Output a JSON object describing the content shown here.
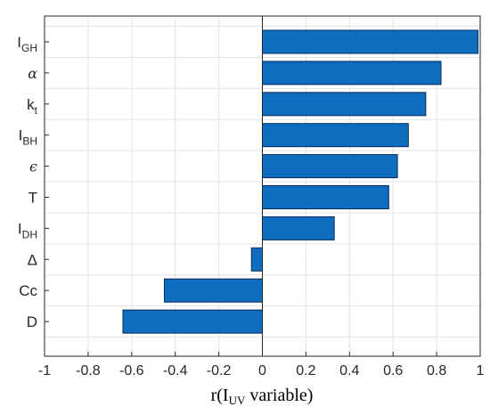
{
  "chart_data": {
    "type": "bar",
    "orientation": "horizontal",
    "categories": [
      {
        "main": "I",
        "sub": "GH",
        "style": "normal"
      },
      {
        "main": "α",
        "sub": "",
        "style": "italic"
      },
      {
        "main": "k",
        "sub": "t",
        "style": "normal"
      },
      {
        "main": "I",
        "sub": "BH",
        "style": "normal"
      },
      {
        "main": "ϵ",
        "sub": "",
        "style": "italic"
      },
      {
        "main": "T",
        "sub": "",
        "style": "normal"
      },
      {
        "main": "I",
        "sub": "DH",
        "style": "normal"
      },
      {
        "main": "Δ",
        "sub": "",
        "style": "normal"
      },
      {
        "main": "Cc",
        "sub": "",
        "style": "normal"
      },
      {
        "main": "D",
        "sub": "",
        "style": "normal"
      }
    ],
    "values": [
      0.99,
      0.82,
      0.75,
      0.67,
      0.62,
      0.58,
      0.33,
      -0.05,
      -0.45,
      -0.64
    ],
    "xlim": [
      -1,
      1
    ],
    "xticks": [
      -1,
      -0.8,
      -0.6,
      -0.4,
      -0.2,
      0,
      0.2,
      0.4,
      0.6,
      0.8,
      1
    ],
    "xtick_labels": [
      "-1",
      "-0.8",
      "-0.6",
      "-0.4",
      "-0.2",
      "0",
      "0.2",
      "0.4",
      "0.6",
      "0.8",
      "1"
    ],
    "xlabel": {
      "prefix": "r(I",
      "sub": "UV",
      "suffix": " variable)"
    },
    "ylabel": "",
    "title": "",
    "grid": true,
    "bar_color": "#0f6dc0",
    "bar_edge_color": "#0a2a55",
    "grid_color": "#e3e3e3",
    "axis_color": "#262626"
  }
}
